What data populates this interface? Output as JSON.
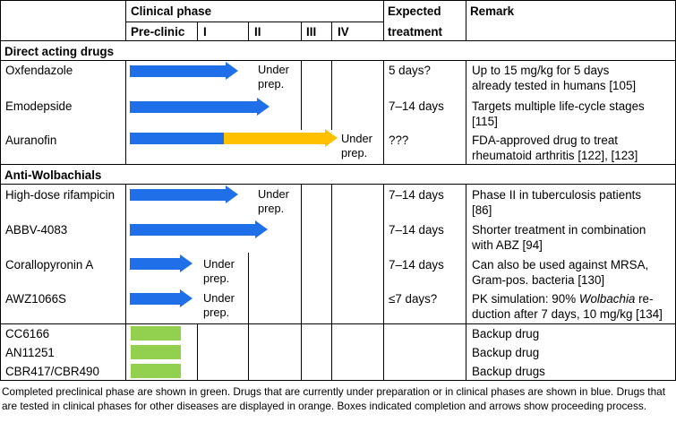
{
  "colors": {
    "completed": "#92d050",
    "in_progress": "#1f6fe8",
    "other_diseases": "#ffc000"
  },
  "header": {
    "clinical_phase": "Clinical phase",
    "preclinic": "Pre-clinic",
    "phase_1": "I",
    "phase_2": "II",
    "phase_3": "III",
    "phase_4": "IV",
    "expected_line1": "Expected",
    "expected_line2": "treatment",
    "remark": "Remark"
  },
  "sections": {
    "direct": "Direct acting drugs",
    "wolbachia": "Anti-Wolbachials"
  },
  "rows": {
    "oxfendazole": {
      "name": "Oxfendazole",
      "status_line1": "Under",
      "status_line2": "prep.",
      "treatment": "5 days?",
      "remark_line1": "Up to 15 mg/kg for 5 days",
      "remark_line2": "already tested in humans [105]"
    },
    "emodepside": {
      "name": "Emodepside",
      "treatment": "7–14 days",
      "remark_line1": "Targets multiple life-cycle stages",
      "remark_line2": "[115]"
    },
    "auranofin": {
      "name": "Auranofin",
      "status_line1": "Under",
      "status_line2": "prep.",
      "treatment": "???",
      "remark_line1": "FDA-approved drug to treat",
      "remark_line2": "rheumatoid arthritis [122], [123]"
    },
    "rifampicin": {
      "name": "High-dose rifampicin",
      "status_line1": "Under",
      "status_line2": "prep.",
      "treatment": "7–14 days",
      "remark_line1": "Phase II in tuberculosis patients",
      "remark_line2": "[86]"
    },
    "abbv": {
      "name": "ABBV-4083",
      "treatment": "7–14 days",
      "remark_line1": "Shorter treatment in combination",
      "remark_line2": "with ABZ [94]"
    },
    "corallopyronin": {
      "name": "Corallopyronin A",
      "status_line1": "Under",
      "status_line2": "prep.",
      "treatment": "7–14 days",
      "remark_line1": "Can also be used against MRSA,",
      "remark_line2": "Gram-pos. bacteria [130]"
    },
    "awz": {
      "name": "AWZ1066S",
      "status_line1": "Under",
      "status_line2": "prep.",
      "treatment": "≤7 days?",
      "remark_line1_pre": "PK simulation: 90% ",
      "remark_line1_em": "Wolbachia",
      "remark_line1_post": " re-",
      "remark_line2": "duction after 7 days, 10 mg/kg [134]"
    },
    "cc6166": {
      "name": "CC6166",
      "remark": "Backup drug"
    },
    "an11251": {
      "name": "AN11251",
      "remark": "Backup drug"
    },
    "cbr": {
      "name": "CBR417/CBR490",
      "remark": "Backup drugs"
    }
  },
  "footnote": "Completed preclinical phase are shown in green. Drugs that are currently under preparation or in clinical phases are shown in blue. Drugs that are tested in clinical phases for other diseases are displayed in orange. Boxes indicated completion and arrows show proceeding process."
}
